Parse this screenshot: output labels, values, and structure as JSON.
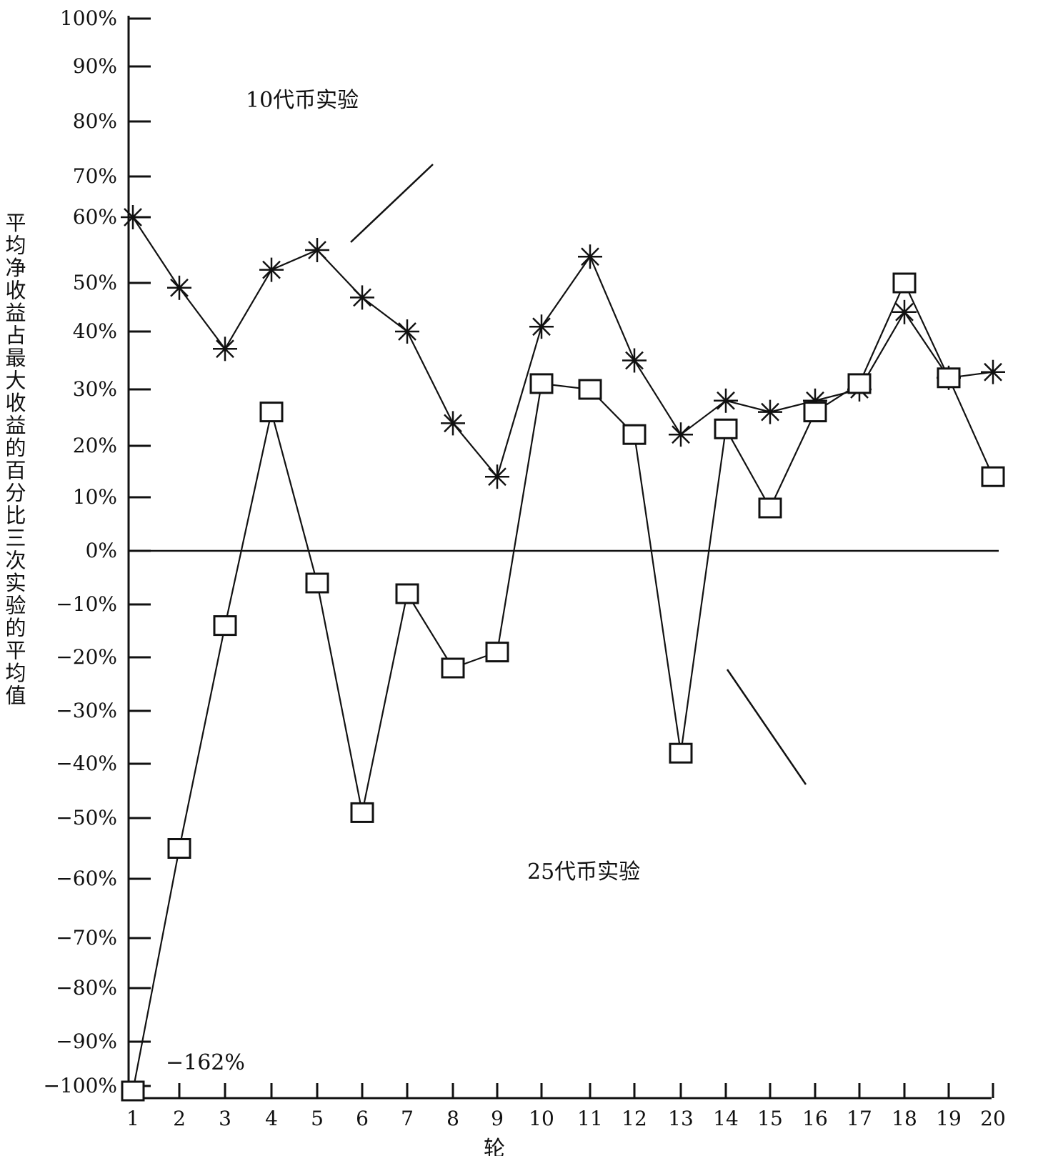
{
  "chart_data": {
    "type": "line",
    "title": "",
    "xlabel": "轮",
    "ylabel": "平均净收益占最大收益的百分比三次实验的平均值",
    "x": [
      1,
      2,
      3,
      4,
      5,
      6,
      7,
      8,
      9,
      10,
      11,
      12,
      13,
      14,
      15,
      16,
      17,
      18,
      19,
      20
    ],
    "ylim": [
      -100,
      100
    ],
    "y_tick_labels": [
      "100%",
      "90%",
      "80%",
      "70%",
      "60%",
      "50%",
      "40%",
      "30%",
      "20%",
      "10%",
      "0%",
      "−10%",
      "−20%",
      "−30%",
      "−40%",
      "−50%",
      "−60%",
      "−70%",
      "−80%",
      "−90%",
      "−100%"
    ],
    "series": [
      {
        "name": "10代币实验",
        "marker": "asterisk",
        "values": [
          60,
          49,
          37,
          52,
          55,
          47,
          40,
          24,
          14,
          41,
          54,
          35,
          22,
          28,
          26,
          28,
          30,
          44,
          32,
          33
        ]
      },
      {
        "name": "25代币实验",
        "marker": "square",
        "values": [
          -162,
          -55,
          -14,
          26,
          -6,
          -49,
          -8,
          -22,
          -19,
          31,
          30,
          22,
          -38,
          23,
          8,
          26,
          31,
          50,
          32,
          14
        ]
      }
    ],
    "annotations": {
      "min_value_label": "−162%"
    },
    "grid": false,
    "zero_line": true
  }
}
